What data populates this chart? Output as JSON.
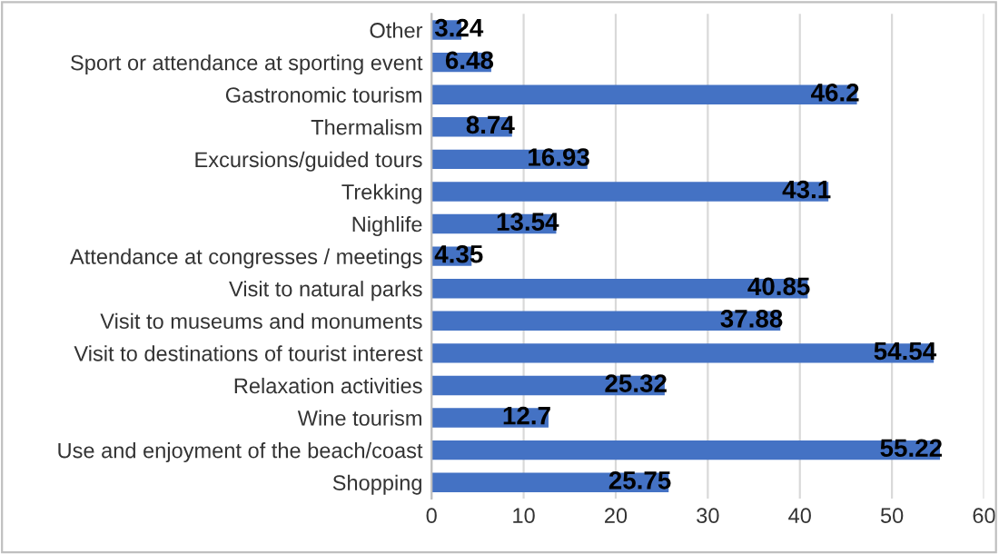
{
  "chart_data": {
    "type": "bar",
    "orientation": "horizontal",
    "categories": [
      "Other",
      "Sport or attendance at sporting event",
      "Gastronomic tourism",
      "Thermalism",
      "Excursions/guided tours",
      "Trekking",
      "Nighlife",
      "Attendance at congresses / meetings",
      "Visit to natural parks",
      "Visit to museums and monuments",
      "Visit to destinations of tourist interest",
      "Relaxation activities",
      "Wine tourism",
      "Use and enjoyment of the beach/coast",
      "Shopping"
    ],
    "values": [
      3.24,
      6.48,
      46.2,
      8.74,
      16.93,
      43.1,
      13.54,
      4.35,
      40.85,
      37.88,
      54.54,
      25.32,
      12.7,
      55.22,
      25.75
    ],
    "color": "#4472c4",
    "xlim": [
      0,
      60
    ],
    "xticks": [
      0,
      10,
      20,
      30,
      40,
      50,
      60
    ],
    "grid": "x",
    "data_labels": true
  }
}
